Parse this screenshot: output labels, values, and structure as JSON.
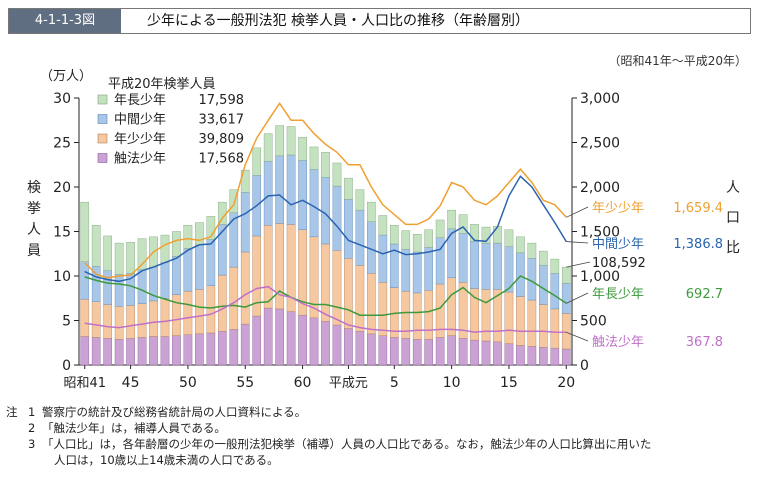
{
  "header": {
    "figure_number": "4-1-1-3図",
    "title": "少年による一般刑法犯 検挙人員・人口比の推移（年齢層別）"
  },
  "period": "（昭和41年～平成20年）",
  "notes": {
    "heading": "注",
    "items": [
      {
        "num": "1",
        "text": "警察庁の統計及び総務省統計局の人口資料による。"
      },
      {
        "num": "2",
        "text": "「触法少年」は，補導人員である。"
      },
      {
        "num": "3",
        "text": "「人口比」は，各年齢層の少年の一般刑法犯検挙（補導）人員の人口比である。なお，触法少年の人口比算出に用いた",
        "continuation": "人口は，10歳以上14歳未満の人口である。"
      }
    ]
  },
  "colors": {
    "older": "#c5e2c0",
    "middle": "#a8c6e8",
    "young": "#f6c8a0",
    "under14": "#caa2d4",
    "line_young": "#f0a030",
    "line_middle": "#2a64b0",
    "line_older": "#3c9a3c",
    "line_under14": "#c070c8"
  },
  "chart_data": {
    "type": "bar",
    "stacked": true,
    "left_axis": {
      "label": "検挙人員",
      "unit": "（万人）",
      "ylim": [
        0,
        30
      ],
      "ticks": [
        "0",
        "5",
        "10",
        "15",
        "20",
        "25",
        "30"
      ]
    },
    "right_axis": {
      "label": "人口比",
      "ylim": [
        0,
        3000
      ],
      "ticks": [
        "0",
        "500",
        "1,000",
        "1,500",
        "2,000",
        "2,500",
        "3,000"
      ]
    },
    "x_tick_labels": [
      {
        "index": 0,
        "label": "昭和41"
      },
      {
        "index": 4,
        "label": "45"
      },
      {
        "index": 9,
        "label": "50"
      },
      {
        "index": 14,
        "label": "55"
      },
      {
        "index": 19,
        "label": "60"
      },
      {
        "index": 23,
        "label": "平成元"
      },
      {
        "index": 27,
        "label": "5"
      },
      {
        "index": 32,
        "label": "10"
      },
      {
        "index": 37,
        "label": "15"
      },
      {
        "index": 42,
        "label": "20"
      }
    ],
    "categories": [
      "S41",
      "S42",
      "S43",
      "S44",
      "S45",
      "S46",
      "S47",
      "S48",
      "S49",
      "S50",
      "S51",
      "S52",
      "S53",
      "S54",
      "S55",
      "S56",
      "S57",
      "S58",
      "S59",
      "S60",
      "S61",
      "S62",
      "S63",
      "H1",
      "H2",
      "H3",
      "H4",
      "H5",
      "H6",
      "H7",
      "H8",
      "H9",
      "H10",
      "H11",
      "H12",
      "H13",
      "H14",
      "H15",
      "H16",
      "H17",
      "H18",
      "H19",
      "H20"
    ],
    "legend": {
      "title": "平成20年検挙人員",
      "entries": [
        {
          "name": "年長少年",
          "value": "17,598"
        },
        {
          "name": "中間少年",
          "value": "33,617"
        },
        {
          "name": "年少少年",
          "value": "39,809"
        },
        {
          "name": "触法少年",
          "value": "17,568"
        }
      ]
    },
    "series": [
      {
        "name": "触法少年",
        "values": [
          3.2,
          3.1,
          3.0,
          2.9,
          3.0,
          3.1,
          3.2,
          3.2,
          3.3,
          3.4,
          3.5,
          3.6,
          3.8,
          4.0,
          4.6,
          5.5,
          6.4,
          6.3,
          6.0,
          5.6,
          5.3,
          4.9,
          4.5,
          4.1,
          3.8,
          3.5,
          3.3,
          3.1,
          3.0,
          2.9,
          2.9,
          3.1,
          3.3,
          3.0,
          2.8,
          2.7,
          2.6,
          2.4,
          2.2,
          2.1,
          2.0,
          1.9,
          1.8
        ]
      },
      {
        "name": "年少少年",
        "values": [
          4.2,
          4.0,
          3.8,
          3.7,
          3.7,
          3.8,
          4.0,
          4.3,
          4.6,
          4.9,
          5.0,
          5.3,
          6.3,
          7.0,
          8.1,
          9.0,
          9.3,
          9.6,
          9.8,
          9.6,
          9.1,
          8.7,
          8.4,
          7.9,
          7.4,
          6.8,
          6.0,
          5.6,
          5.3,
          5.2,
          5.5,
          6.0,
          6.5,
          6.3,
          5.8,
          5.8,
          5.9,
          5.8,
          5.5,
          5.2,
          4.8,
          4.4,
          4.0
        ]
      },
      {
        "name": "中間少年",
        "values": [
          4.2,
          4.0,
          3.8,
          3.6,
          3.6,
          3.8,
          3.8,
          4.0,
          4.3,
          4.8,
          5.0,
          5.2,
          5.7,
          6.1,
          6.7,
          6.8,
          7.2,
          7.6,
          7.8,
          7.8,
          7.6,
          7.5,
          7.2,
          6.6,
          6.2,
          5.8,
          5.3,
          4.9,
          4.7,
          4.6,
          4.8,
          5.2,
          5.5,
          5.5,
          5.3,
          5.2,
          5.2,
          5.1,
          4.9,
          4.7,
          4.4,
          4.0,
          3.4
        ]
      },
      {
        "name": "年長少年",
        "values": [
          6.7,
          4.6,
          3.9,
          3.5,
          3.5,
          3.5,
          3.4,
          3.1,
          2.8,
          2.6,
          2.5,
          2.6,
          2.5,
          2.6,
          2.5,
          3.1,
          3.1,
          3.4,
          3.2,
          2.6,
          2.5,
          2.8,
          2.6,
          2.4,
          2.3,
          2.2,
          2.2,
          2.1,
          2.1,
          2.0,
          2.0,
          2.0,
          2.1,
          2.1,
          1.9,
          1.8,
          1.9,
          1.9,
          1.8,
          1.7,
          1.6,
          1.6,
          1.8
        ]
      }
    ],
    "lines": [
      {
        "name": "年少少年",
        "final_label": "1,659.4",
        "values": [
          1150,
          1020,
          980,
          1000,
          1010,
          1130,
          1270,
          1350,
          1400,
          1420,
          1400,
          1440,
          1650,
          1800,
          2250,
          2550,
          2750,
          2940,
          2750,
          2750,
          2600,
          2480,
          2390,
          2250,
          2250,
          2000,
          1800,
          1690,
          1580,
          1580,
          1640,
          1790,
          2050,
          2000,
          1850,
          1800,
          1900,
          2050,
          2200,
          2050,
          1850,
          1800,
          1659.4
        ]
      },
      {
        "name": "中間少年",
        "final_label": "1,386.8",
        "values": [
          1050,
          990,
          960,
          940,
          970,
          1060,
          1100,
          1150,
          1200,
          1290,
          1350,
          1360,
          1500,
          1640,
          1700,
          1790,
          1900,
          1910,
          1800,
          1850,
          1780,
          1700,
          1560,
          1400,
          1350,
          1300,
          1250,
          1290,
          1240,
          1250,
          1270,
          1300,
          1480,
          1550,
          1400,
          1390,
          1550,
          1900,
          2120,
          2000,
          1800,
          1600,
          1386.8
        ]
      },
      {
        "name": "年長少年",
        "final_label": "692.7",
        "values": [
          990,
          950,
          920,
          910,
          890,
          840,
          780,
          740,
          700,
          680,
          650,
          640,
          660,
          670,
          650,
          700,
          710,
          830,
          760,
          710,
          680,
          680,
          650,
          620,
          560,
          560,
          560,
          580,
          590,
          590,
          600,
          640,
          790,
          870,
          760,
          700,
          780,
          860,
          1000,
          940,
          860,
          780,
          692.7
        ]
      },
      {
        "name": "触法少年",
        "final_label": "367.8",
        "values": [
          470,
          450,
          430,
          420,
          440,
          460,
          480,
          490,
          510,
          530,
          550,
          570,
          630,
          700,
          790,
          860,
          880,
          790,
          760,
          690,
          640,
          570,
          510,
          450,
          420,
          400,
          390,
          380,
          380,
          390,
          390,
          400,
          400,
          390,
          370,
          380,
          380,
          390,
          380,
          380,
          380,
          370,
          367.8
        ]
      }
    ],
    "annotations": [
      {
        "text": "108,592"
      }
    ]
  }
}
